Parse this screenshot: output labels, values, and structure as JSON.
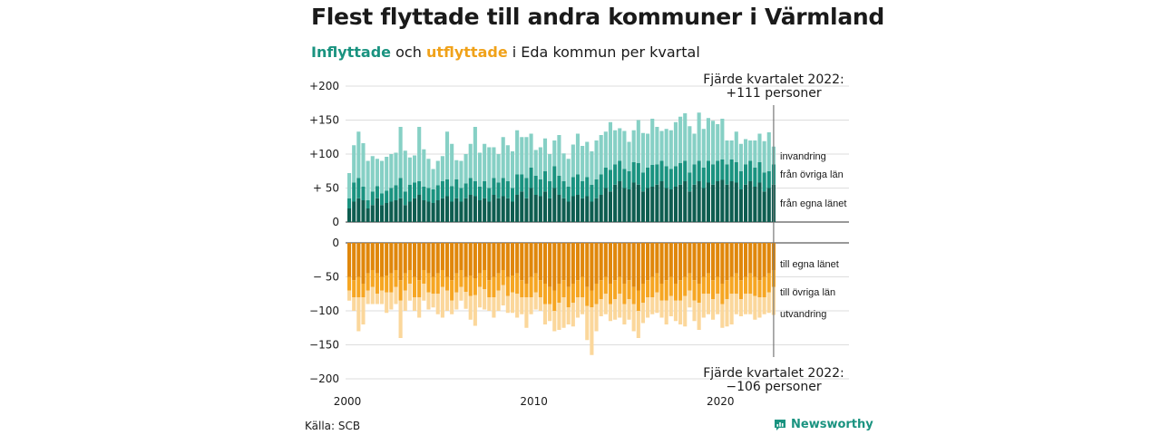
{
  "title": "Flest flyttade till andra kommuner i Värmland",
  "subtitle": {
    "in_word": "Inflyttade",
    "and_word": " och ",
    "out_word": "utflyttade",
    "rest": " i Eda kommun per kvartal"
  },
  "source": "Källa: SCB",
  "brand": "Newsworthy",
  "colors": {
    "in_own_county": "#0e5d50",
    "in_other_counties": "#1a9380",
    "immigration": "#86d0c5",
    "out_own_county": "#e0870b",
    "out_other_counties": "#f6a623",
    "emigration": "#fbd79b",
    "grid": "#dddddd",
    "brand": "#1a9380"
  },
  "annotations": {
    "top_line1": "Fjärde kvartalet 2022:",
    "top_line2": "+111 personer",
    "bottom_line1": "Fjärde kvartalet 2022:",
    "bottom_line2": "−106 personer"
  },
  "segment_labels": {
    "in": [
      "invandring",
      "från övriga län",
      "från egna länet"
    ],
    "out": [
      "till egna länet",
      "till övriga län",
      "utvandring"
    ]
  },
  "chart_data": {
    "type": "bar",
    "stacked": true,
    "x_start": "2000 Q1",
    "x_end": "2022 Q4",
    "x_ticks": [
      "2000",
      "2010",
      "2020"
    ],
    "y_ticks_in": [
      "+200",
      "+150",
      "+100",
      "+ 50",
      "0"
    ],
    "y_ticks_out": [
      "0",
      "− 50",
      "−100",
      "−150",
      "−200"
    ],
    "ylim_in": [
      0,
      200
    ],
    "ylim_out": [
      0,
      -200
    ],
    "grid": true,
    "in_series": [
      {
        "name": "från egna länet",
        "values": [
          20,
          30,
          35,
          32,
          20,
          25,
          35,
          25,
          28,
          30,
          32,
          35,
          25,
          30,
          35,
          40,
          32,
          30,
          28,
          32,
          35,
          38,
          30,
          35,
          30,
          35,
          40,
          38,
          32,
          35,
          30,
          40,
          35,
          38,
          35,
          30,
          40,
          45,
          35,
          50,
          40,
          38,
          45,
          35,
          50,
          40,
          35,
          30,
          38,
          40,
          35,
          38,
          30,
          35,
          40,
          50,
          45,
          55,
          60,
          50,
          48,
          58,
          55,
          45,
          50,
          52,
          55,
          60,
          50,
          48,
          52,
          55,
          60,
          45,
          55,
          60,
          50,
          58,
          55,
          60,
          62,
          55,
          60,
          58,
          48,
          55,
          60,
          52,
          58,
          45,
          50,
          55
        ]
      },
      {
        "name": "från övriga län",
        "values": [
          15,
          28,
          30,
          20,
          12,
          20,
          18,
          17,
          18,
          20,
          22,
          30,
          20,
          25,
          23,
          20,
          20,
          20,
          20,
          22,
          25,
          25,
          23,
          28,
          20,
          22,
          25,
          22,
          20,
          25,
          20,
          25,
          23,
          27,
          25,
          20,
          30,
          25,
          30,
          30,
          28,
          25,
          30,
          25,
          32,
          28,
          25,
          22,
          28,
          30,
          25,
          28,
          25,
          28,
          30,
          30,
          32,
          30,
          30,
          28,
          27,
          30,
          32,
          28,
          30,
          32,
          30,
          30,
          32,
          30,
          30,
          32,
          30,
          28,
          30,
          30,
          30,
          32,
          30,
          30,
          30,
          30,
          32,
          30,
          27,
          30,
          30,
          28,
          30,
          28,
          25,
          30
        ]
      },
      {
        "name": "invandring",
        "values": [
          37,
          55,
          68,
          64,
          58,
          52,
          40,
          48,
          50,
          50,
          48,
          75,
          60,
          40,
          40,
          80,
          55,
          43,
          30,
          36,
          37,
          70,
          62,
          28,
          40,
          43,
          50,
          80,
          50,
          55,
          60,
          45,
          42,
          60,
          53,
          54,
          65,
          55,
          60,
          50,
          38,
          47,
          48,
          40,
          38,
          60,
          41,
          41,
          48,
          60,
          52,
          52,
          49,
          57,
          58,
          53,
          70,
          50,
          48,
          56,
          43,
          47,
          63,
          58,
          50,
          68,
          55,
          44,
          55,
          57,
          65,
          68,
          70,
          68,
          45,
          71,
          57,
          63,
          64,
          54,
          60,
          35,
          28,
          45,
          40,
          37,
          30,
          40,
          42,
          46,
          57,
          26
        ]
      }
    ],
    "out_series": [
      {
        "name": "till egna länet",
        "values": [
          50,
          55,
          50,
          60,
          45,
          40,
          45,
          50,
          48,
          45,
          40,
          55,
          45,
          40,
          50,
          55,
          40,
          45,
          50,
          45,
          40,
          50,
          55,
          45,
          40,
          50,
          48,
          52,
          45,
          40,
          55,
          50,
          45,
          40,
          50,
          48,
          45,
          55,
          60,
          50,
          45,
          55,
          60,
          65,
          70,
          60,
          55,
          65,
          60,
          55,
          50,
          65,
          70,
          60,
          55,
          50,
          60,
          55,
          50,
          60,
          55,
          65,
          70,
          60,
          55,
          50,
          45,
          60,
          55,
          50,
          60,
          55,
          50,
          45,
          55,
          60,
          50,
          45,
          55,
          50,
          60,
          55,
          50,
          45,
          55,
          50,
          45,
          50,
          55,
          50,
          45,
          40
        ]
      },
      {
        "name": "till övriga län",
        "values": [
          20,
          25,
          30,
          20,
          25,
          25,
          30,
          20,
          25,
          28,
          25,
          30,
          25,
          20,
          30,
          25,
          20,
          28,
          25,
          30,
          25,
          20,
          30,
          28,
          25,
          22,
          30,
          25,
          20,
          28,
          25,
          30,
          25,
          22,
          28,
          25,
          30,
          25,
          20,
          30,
          28,
          25,
          30,
          25,
          30,
          28,
          25,
          30,
          28,
          25,
          30,
          28,
          25,
          30,
          28,
          25,
          30,
          28,
          25,
          30,
          28,
          25,
          30,
          28,
          25,
          30,
          28,
          25,
          30,
          28,
          25,
          30,
          28,
          25,
          30,
          28,
          25,
          30,
          28,
          25,
          30,
          28,
          25,
          30,
          28,
          25,
          30,
          28,
          25,
          30,
          28,
          25
        ]
      },
      {
        "name": "utvandring",
        "values": [
          15,
          20,
          50,
          40,
          20,
          25,
          15,
          20,
          30,
          25,
          25,
          55,
          30,
          25,
          20,
          30,
          25,
          25,
          20,
          30,
          45,
          30,
          20,
          25,
          20,
          25,
          35,
          45,
          30,
          30,
          20,
          30,
          30,
          30,
          25,
          30,
          35,
          25,
          45,
          25,
          25,
          20,
          30,
          25,
          30,
          40,
          45,
          25,
          35,
          30,
          25,
          50,
          70,
          40,
          25,
          30,
          25,
          30,
          35,
          30,
          30,
          40,
          40,
          30,
          30,
          25,
          30,
          25,
          35,
          30,
          30,
          35,
          45,
          25,
          30,
          40,
          35,
          30,
          30,
          30,
          35,
          40,
          45,
          30,
          25,
          30,
          30,
          35,
          30,
          25,
          30,
          41
        ]
      }
    ]
  }
}
